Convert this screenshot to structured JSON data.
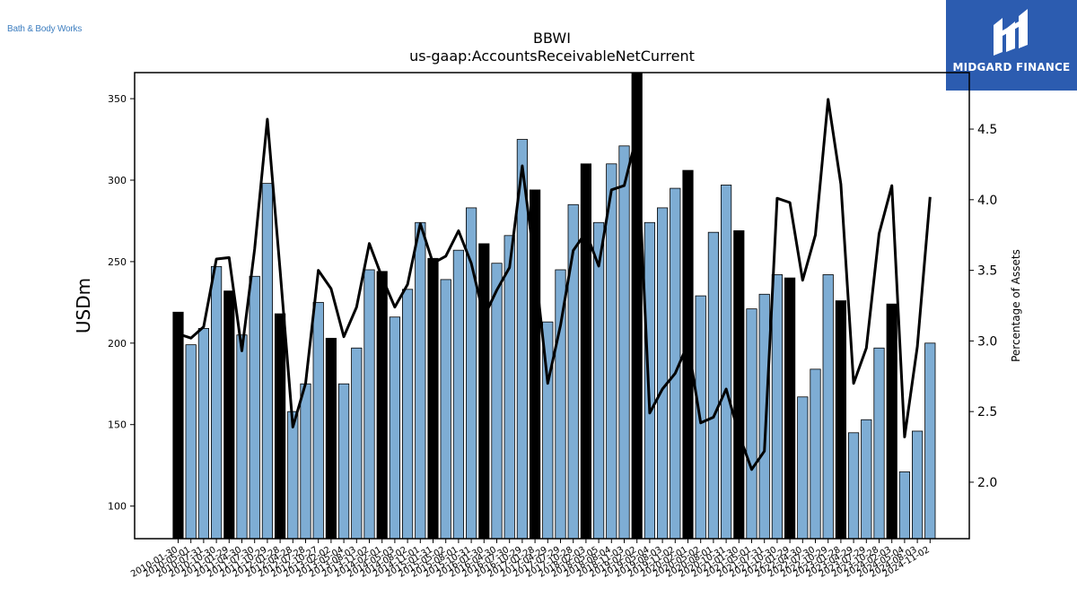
{
  "brand": {
    "left_text": "Bath & Body Works",
    "right_text": "MIDGARD FINANCE"
  },
  "colors": {
    "bar_default": "#7eadd4",
    "bar_highlight": "#000000",
    "line": "#000000",
    "logo_bg": "#2c5cb0"
  },
  "icons": {
    "logo_mark": "midgard-logo-icon"
  },
  "chart_data": {
    "type": "bar",
    "title": "BBWI",
    "subtitle": "us-gaap:AccountsReceivableNetCurrent",
    "ylabel": "USDm",
    "y2label": "Percentage of Assets",
    "ylim": [
      80,
      366
    ],
    "y2lim": [
      1.6,
      4.9
    ],
    "yticks": [
      100,
      150,
      200,
      250,
      300,
      350
    ],
    "y2ticks": [
      2.0,
      2.5,
      3.0,
      3.5,
      4.0,
      4.5
    ],
    "grid": false,
    "legend": "none",
    "categories": [
      "2010-01-30",
      "2010-05-01",
      "2010-07-31",
      "2010-10-30",
      "2011-01-29",
      "2011-04-30",
      "2011-07-30",
      "2011-10-29",
      "2012-01-28",
      "2012-04-28",
      "2012-07-28",
      "2012-10-27",
      "2013-02-02",
      "2013-05-04",
      "2013-08-03",
      "2013-11-02",
      "2014-02-01",
      "2014-05-03",
      "2014-08-02",
      "2014-11-01",
      "2015-01-31",
      "2015-05-02",
      "2015-08-01",
      "2015-10-31",
      "2016-01-30",
      "2016-04-30",
      "2016-07-30",
      "2016-10-29",
      "2017-01-28",
      "2017-04-29",
      "2017-07-29",
      "2017-10-28",
      "2018-02-03",
      "2018-05-05",
      "2018-08-04",
      "2018-11-03",
      "2019-02-02",
      "2019-05-04",
      "2019-08-03",
      "2019-11-02",
      "2020-02-01",
      "2020-05-02",
      "2020-08-01",
      "2020-10-31",
      "2021-01-30",
      "2021-05-01",
      "2021-07-31",
      "2021-10-30",
      "2022-01-29",
      "2022-04-30",
      "2022-07-30",
      "2022-10-29",
      "2023-01-28",
      "2023-04-29",
      "2023-07-29",
      "2023-10-28",
      "2024-02-03",
      "2024-05-04",
      "2024-08-03",
      "2024-11-02"
    ],
    "highlighted": [
      true,
      false,
      false,
      false,
      true,
      false,
      false,
      false,
      true,
      false,
      false,
      false,
      true,
      false,
      false,
      false,
      true,
      false,
      false,
      false,
      true,
      false,
      false,
      false,
      true,
      false,
      false,
      false,
      true,
      false,
      false,
      false,
      true,
      false,
      false,
      false,
      true,
      false,
      false,
      false,
      true,
      false,
      false,
      false,
      true,
      false,
      false,
      false,
      true,
      false,
      false,
      false,
      true,
      false,
      false,
      false,
      true,
      false,
      false,
      false
    ],
    "series": [
      {
        "values": [
          219,
          199,
          209,
          247,
          232,
          205,
          241,
          298,
          218,
          158,
          175,
          225,
          203,
          175,
          197,
          245,
          244,
          216,
          233,
          274,
          252,
          239,
          257,
          283,
          261,
          249,
          266,
          325,
          294,
          213,
          245,
          285,
          310,
          274,
          310,
          321,
          366,
          274,
          283,
          295,
          306,
          229,
          268,
          297,
          269,
          221,
          230,
          242,
          240,
          167,
          184,
          242,
          226,
          145,
          153,
          197,
          224,
          121,
          146,
          200
        ]
      },
      {
        "axis": "right",
        "type": "line",
        "values": [
          3.05,
          3.02,
          3.1,
          3.58,
          3.59,
          2.93,
          3.65,
          4.57,
          3.5,
          2.39,
          2.7,
          3.5,
          3.37,
          3.03,
          3.24,
          3.69,
          3.45,
          3.24,
          3.4,
          3.83,
          3.55,
          3.6,
          3.78,
          3.55,
          3.17,
          3.36,
          3.52,
          4.24,
          3.53,
          2.7,
          3.11,
          3.64,
          3.77,
          3.53,
          4.07,
          4.1,
          4.46,
          2.49,
          2.66,
          2.77,
          2.98,
          2.42,
          2.46,
          2.66,
          2.34,
          2.09,
          2.22,
          4.01,
          3.98,
          3.43,
          3.75,
          4.71,
          4.11,
          2.7,
          2.95,
          3.76,
          4.1,
          2.32,
          2.96,
          4.02
        ]
      }
    ]
  }
}
